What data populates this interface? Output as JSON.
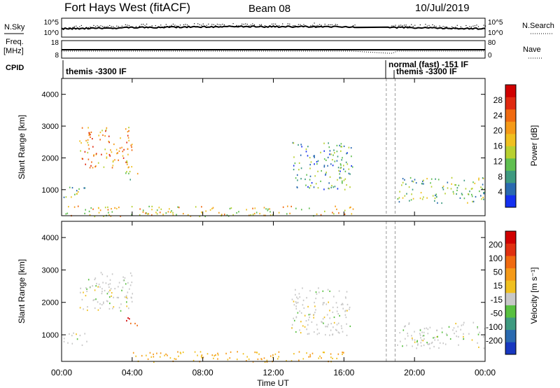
{
  "header": {
    "station": "Fort Hays West (fitACF)",
    "beam": "Beam 08",
    "date": "10/Jul/2019"
  },
  "noise_panel": {
    "left_label": "N.Sky",
    "right_label": "N.Search",
    "left_ticks": [
      "10^5",
      "10^0"
    ],
    "right_ticks": [
      "10^5",
      "10^0"
    ]
  },
  "freq_panel": {
    "left_label_1": "Freq.",
    "left_label_2": "[MHz]",
    "right_label": "Nave",
    "left_ticks": [
      "18",
      "8"
    ],
    "right_ticks": [
      "80",
      "0"
    ]
  },
  "cpid": {
    "label": "CPID",
    "modes": [
      "themis -3300 IF",
      "normal (fast) -151 IF",
      "themis -3300 IF"
    ]
  },
  "x_ticks": [
    "00:00",
    "04:00",
    "08:00",
    "12:00",
    "16:00",
    "20:00",
    "00:00"
  ],
  "xlabel": "Time UT",
  "y_ticks": [
    "1000",
    "2000",
    "3000",
    "4000"
  ],
  "ylabel": "Slant Range [km]",
  "power_colorbar": {
    "label": "Power [dB]",
    "ticks": [
      "4",
      "8",
      "12",
      "16",
      "20",
      "24",
      "28"
    ],
    "colors": [
      "#1430f0",
      "#2a6ab0",
      "#3e9a80",
      "#5fbf50",
      "#b8d030",
      "#f0c020",
      "#f59a18",
      "#f06a10",
      "#e02a10",
      "#d00000"
    ]
  },
  "velocity_colorbar": {
    "label": "Velocity [m s⁻¹]",
    "ticks": [
      "200",
      "100",
      "50",
      "15",
      "-15",
      "-50",
      "-100",
      "-200"
    ],
    "colors": [
      "#1838c0",
      "#2a6ab0",
      "#3e9a80",
      "#58c040",
      "#c8c8c8",
      "#f0c020",
      "#f59a18",
      "#f06a10",
      "#e03010",
      "#d00000"
    ]
  },
  "chart_data": {
    "type": "heatmap",
    "x_range_hours": [
      0,
      24
    ],
    "y_range_km": [
      180,
      4500
    ],
    "data_gap_hours": [
      16.6,
      18.4
    ],
    "mode_boundaries_hours": [
      18.4,
      18.9
    ],
    "noise_level_log10": 1.2,
    "frequency_mhz": 10.5,
    "power_clusters_dB": [
      {
        "t0": 0.1,
        "t1": 1.4,
        "r0": 700,
        "r1": 1100,
        "power": 10
      },
      {
        "t0": 1.0,
        "t1": 4.0,
        "r0": 1700,
        "r1": 3000,
        "power": 20
      },
      {
        "t0": 3.6,
        "t1": 4.4,
        "r0": 1300,
        "r1": 1600,
        "power": 14
      },
      {
        "t0": 0.2,
        "t1": 16.5,
        "r0": 180,
        "r1": 500,
        "power": 16
      },
      {
        "t0": 13.0,
        "t1": 16.5,
        "r0": 1000,
        "r1": 2500,
        "power": 8
      },
      {
        "t0": 19.0,
        "t1": 24.0,
        "r0": 600,
        "r1": 1400,
        "power": 10
      }
    ],
    "velocity_clusters_ms": [
      {
        "t0": 0.1,
        "t1": 1.4,
        "r0": 700,
        "r1": 1100,
        "velocity": 0
      },
      {
        "t0": 1.0,
        "t1": 4.0,
        "r0": 1700,
        "r1": 3000,
        "velocity": 0
      },
      {
        "t0": 3.6,
        "t1": 4.4,
        "r0": 1300,
        "r1": 1600,
        "velocity": -150
      },
      {
        "t0": 4.0,
        "t1": 16.5,
        "r0": 180,
        "r1": 500,
        "velocity": -50
      },
      {
        "t0": 13.0,
        "t1": 16.5,
        "r0": 1000,
        "r1": 2500,
        "velocity": 0
      },
      {
        "t0": 19.0,
        "t1": 24.0,
        "r0": 600,
        "r1": 1400,
        "velocity": 0
      }
    ]
  }
}
